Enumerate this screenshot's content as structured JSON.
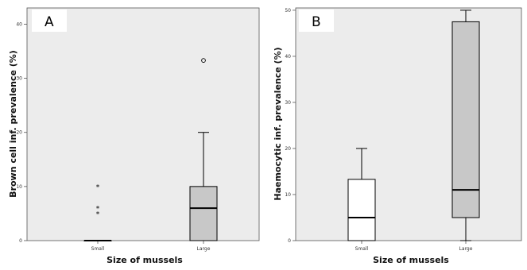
{
  "chart_data": [
    {
      "type": "box",
      "panel_label": "A",
      "xlabel": "Size of mussels",
      "ylabel": "Brown cell inf. prevalence (%)",
      "ylim": [
        0,
        43
      ],
      "yticks": [
        0,
        10,
        20,
        30,
        40
      ],
      "categories": [
        "Small",
        "Large"
      ],
      "boxes": [
        {
          "category": "Small",
          "min": 0,
          "q1": 0,
          "median": 0,
          "q3": 0,
          "max": 0,
          "fill": "#ffffff",
          "outliers": [
            {
              "value": 5,
              "marker": "*"
            },
            {
              "value": 6,
              "marker": "*"
            },
            {
              "value": 10,
              "marker": "*"
            }
          ]
        },
        {
          "category": "Large",
          "min": 0,
          "q1": 0,
          "median": 6,
          "q3": 10,
          "max": 20,
          "fill": "#c8c8c8",
          "outliers": [
            {
              "value": 33.3,
              "marker": "o"
            }
          ]
        }
      ],
      "plot_background": "#ececec",
      "grid": false
    },
    {
      "type": "box",
      "panel_label": "B",
      "xlabel": "Size of mussels",
      "ylabel": "Haemocytic inf. prevalence (%)",
      "ylim": [
        0,
        50.5
      ],
      "yticks": [
        0,
        10,
        20,
        30,
        40,
        50
      ],
      "categories": [
        "Small",
        "Large"
      ],
      "boxes": [
        {
          "category": "Small",
          "min": 0,
          "q1": 0,
          "median": 5,
          "q3": 13.3,
          "max": 20,
          "fill": "#ffffff",
          "outliers": []
        },
        {
          "category": "Large",
          "min": 0,
          "q1": 5,
          "median": 11,
          "q3": 47.5,
          "max": 50,
          "fill": "#c8c8c8",
          "outliers": []
        }
      ],
      "plot_background": "#ececec",
      "grid": false
    }
  ]
}
